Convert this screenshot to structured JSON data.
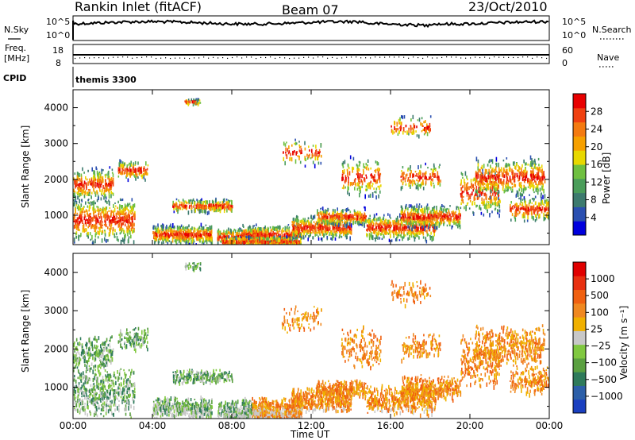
{
  "chart_data": [
    {
      "type": "line",
      "panel": "summary",
      "title": "Rankin Inlet (fitACF)",
      "beam": "Beam 07",
      "date": "23/Oct/2010",
      "left_labels": {
        "sky": "N.Sky",
        "freq": "Freq.",
        "freq_unit": "[MHz]",
        "cpid": "CPID"
      },
      "right_labels": {
        "search": "N.Search",
        "nave": "Nave"
      },
      "nsky_ticks": [
        "10^5",
        "10^0"
      ],
      "nsearch_ticks": [
        "10^5",
        "10^0"
      ],
      "freq_ticks": [
        "18",
        "8"
      ],
      "nave_ticks": [
        "60",
        "0"
      ],
      "cpid_text": "themis 3300"
    },
    {
      "type": "heatmap",
      "panel": "power",
      "xlabel": "",
      "ylabel": "Slant Range [km]",
      "xlim": [
        "00:00",
        "24:00"
      ],
      "ylim": [
        180,
        4500
      ],
      "yticks": [
        1000,
        2000,
        3000,
        4000
      ],
      "colorbar": {
        "label": "Power [dB]",
        "tick_labels": [
          "28",
          "24",
          "20",
          "16",
          "12",
          "8",
          "4"
        ],
        "colors": [
          "#0000dd",
          "#2a4fb0",
          "#3c7a6e",
          "#4a9d5a",
          "#6fc040",
          "#e8d800",
          "#f6a000",
          "#f47a10",
          "#f04010",
          "#e80000"
        ]
      }
    },
    {
      "type": "heatmap",
      "panel": "velocity",
      "xlabel": "Time UT",
      "ylabel": "Slant Range [km]",
      "xlim": [
        "00:00",
        "24:00"
      ],
      "ylim": [
        180,
        4500
      ],
      "yticks": [
        1000,
        2000,
        3000,
        4000
      ],
      "xticks": [
        "00:00",
        "04:00",
        "08:00",
        "12:00",
        "16:00",
        "20:00",
        "00:00"
      ],
      "colorbar": {
        "label": "Velocity [m s⁻¹]",
        "tick_labels": [
          "1000",
          "500",
          "100",
          "25",
          "−25",
          "−100",
          "−500",
          "−1000"
        ],
        "colors": [
          "#1a3fc0",
          "#2c5fa8",
          "#2e7a5a",
          "#5aa040",
          "#80c840",
          "#c8c8c8",
          "#f0b000",
          "#f08820",
          "#f06010",
          "#e83010",
          "#e00000"
        ]
      }
    }
  ]
}
